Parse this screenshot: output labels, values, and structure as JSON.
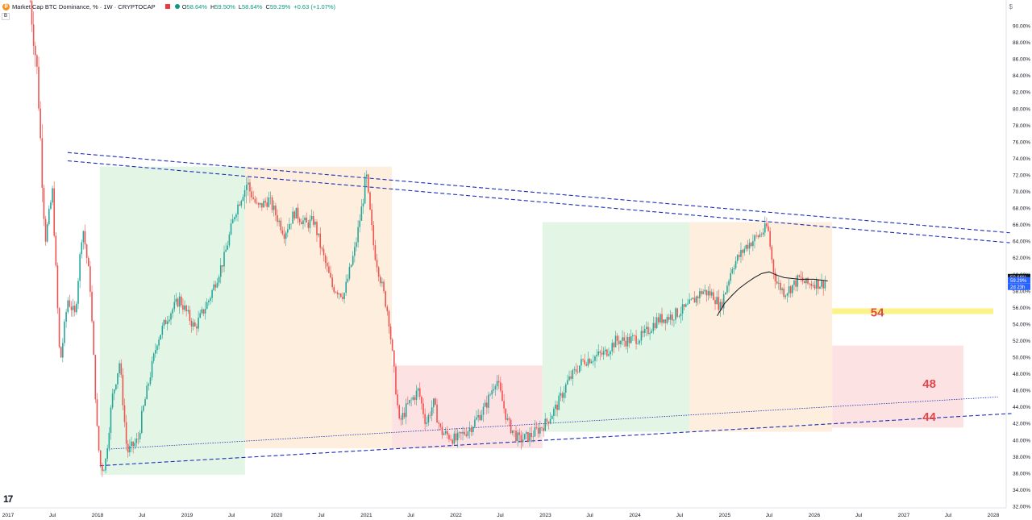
{
  "header": {
    "title": "Market Cap BTC Dominance, % · 1W · CRYPTOCAP",
    "btc_symbol": "₿",
    "open_label": "O",
    "open": "58.64%",
    "high_label": "H",
    "high": "59.50%",
    "low_label": "L",
    "low": "58.64%",
    "close_label": "C",
    "close": "59.29%",
    "change": "+0.63 (+1.07%)",
    "sub": "B"
  },
  "colors": {
    "up": "#26a69a",
    "down": "#ef5350",
    "green_zone": "#e3f6e5",
    "orange_zone": "#fdeedd",
    "red_zone": "#fce2e3",
    "yellow_zone": "#fbf38a",
    "trend": "#1a2fb8",
    "number": "#e0474c"
  },
  "price_tags": [
    {
      "text": "59.66%",
      "bg": "#131722",
      "fg": "#ffffff"
    },
    {
      "text": "59.29%",
      "bg": "#2962ff",
      "fg": "#ffffff"
    },
    {
      "text": "2d 23h",
      "bg": "#2962ff",
      "fg": "#ffffff"
    }
  ],
  "chart_data": {
    "type": "candlestick",
    "title": "Market Cap BTC Dominance, % · 1W · CRYPTOCAP",
    "ylim": [
      31.5,
      93.5
    ],
    "y_ticks": [
      "32.00%",
      "34.00%",
      "36.00%",
      "38.00%",
      "40.00%",
      "42.00%",
      "44.00%",
      "46.00%",
      "48.00%",
      "50.00%",
      "52.00%",
      "54.00%",
      "56.00%",
      "58.00%",
      "60.00%",
      "62.00%",
      "64.00%",
      "66.00%",
      "68.00%",
      "70.00%",
      "72.00%",
      "74.00%",
      "76.00%",
      "78.00%",
      "80.00%",
      "82.00%",
      "84.00%",
      "86.00%",
      "88.00%",
      "90.00%"
    ],
    "x_ticks": [
      "2017",
      "Jul",
      "2018",
      "Jul",
      "2019",
      "Jul",
      "2020",
      "Jul",
      "2021",
      "Jul",
      "2022",
      "Jul",
      "2023",
      "Jul",
      "2024",
      "Jul",
      "2025",
      "Jul",
      "2026",
      "Jul",
      "2027",
      "Jul",
      "2028"
    ],
    "price_path": [
      [
        "2017-04-01",
        93.0
      ],
      [
        "2017-05-01",
        84.0
      ],
      [
        "2017-06-01",
        64.0
      ],
      [
        "2017-07-01",
        70.0
      ],
      [
        "2017-08-01",
        49.0
      ],
      [
        "2017-09-01",
        57.0
      ],
      [
        "2017-10-01",
        55.0
      ],
      [
        "2017-11-01",
        66.0
      ],
      [
        "2017-12-01",
        59.0
      ],
      [
        "2018-01-01",
        40.0
      ],
      [
        "2018-01-15",
        36.5
      ],
      [
        "2018-02-01",
        37.0
      ],
      [
        "2018-03-01",
        45.0
      ],
      [
        "2018-04-01",
        49.5
      ],
      [
        "2018-05-01",
        38.5
      ],
      [
        "2018-06-15",
        40.0
      ],
      [
        "2018-07-01",
        43.0
      ],
      [
        "2018-09-01",
        52.0
      ],
      [
        "2018-10-15",
        55.0
      ],
      [
        "2018-12-01",
        57.0
      ],
      [
        "2019-02-01",
        53.5
      ],
      [
        "2019-04-01",
        57.0
      ],
      [
        "2019-06-01",
        62.0
      ],
      [
        "2019-07-15",
        67.5
      ],
      [
        "2019-09-01",
        71.0
      ],
      [
        "2019-10-15",
        68.0
      ],
      [
        "2019-12-01",
        69.0
      ],
      [
        "2020-02-01",
        65.0
      ],
      [
        "2020-03-15",
        67.5
      ],
      [
        "2020-05-01",
        66.0
      ],
      [
        "2020-06-01",
        66.5
      ],
      [
        "2020-07-01",
        63.0
      ],
      [
        "2020-08-15",
        58.5
      ],
      [
        "2020-10-01",
        57.5
      ],
      [
        "2020-11-15",
        63.0
      ],
      [
        "2021-01-01",
        71.5
      ],
      [
        "2021-02-01",
        63.0
      ],
      [
        "2021-04-01",
        55.0
      ],
      [
        "2021-05-15",
        42.0
      ],
      [
        "2021-06-15",
        44.0
      ],
      [
        "2021-08-01",
        46.0
      ],
      [
        "2021-09-01",
        42.0
      ],
      [
        "2021-10-01",
        44.5
      ],
      [
        "2021-11-01",
        41.0
      ],
      [
        "2022-01-01",
        40.0
      ],
      [
        "2022-03-01",
        41.5
      ],
      [
        "2022-05-01",
        44.0
      ],
      [
        "2022-06-15",
        47.5
      ],
      [
        "2022-08-01",
        42.0
      ],
      [
        "2022-09-15",
        40.0
      ],
      [
        "2022-11-01",
        40.5
      ],
      [
        "2023-01-01",
        42.0
      ],
      [
        "2023-02-15",
        44.0
      ],
      [
        "2023-04-01",
        47.0
      ],
      [
        "2023-06-01",
        49.5
      ],
      [
        "2023-07-15",
        50.0
      ],
      [
        "2023-09-01",
        50.5
      ],
      [
        "2023-10-15",
        52.0
      ],
      [
        "2023-12-01",
        52.0
      ],
      [
        "2024-02-01",
        52.5
      ],
      [
        "2024-04-01",
        54.5
      ],
      [
        "2024-06-01",
        55.0
      ],
      [
        "2024-08-01",
        56.0
      ],
      [
        "2024-10-01",
        58.0
      ],
      [
        "2024-11-15",
        57.5
      ],
      [
        "2024-12-15",
        56.0
      ],
      [
        "2025-02-01",
        61.0
      ],
      [
        "2025-04-01",
        63.5
      ],
      [
        "2025-06-01",
        65.0
      ],
      [
        "2025-06-25",
        65.8
      ],
      [
        "2025-07-15",
        61.0
      ],
      [
        "2025-08-01",
        59.0
      ],
      [
        "2025-09-01",
        57.8
      ],
      [
        "2025-10-01",
        58.5
      ],
      [
        "2025-11-01",
        59.5
      ],
      [
        "2025-12-01",
        58.8
      ],
      [
        "2026-01-01",
        59.0
      ],
      [
        "2026-02-01",
        58.8
      ],
      [
        "2026-02-20",
        59.3
      ]
    ],
    "moving_average": [
      [
        "2024-12-01",
        55.0
      ],
      [
        "2025-01-01",
        56.5
      ],
      [
        "2025-02-01",
        57.5
      ],
      [
        "2025-03-01",
        58.3
      ],
      [
        "2025-04-01",
        59.0
      ],
      [
        "2025-05-01",
        59.6
      ],
      [
        "2025-06-01",
        60.1
      ],
      [
        "2025-07-01",
        60.3
      ],
      [
        "2025-08-01",
        59.9
      ],
      [
        "2025-09-01",
        59.6
      ],
      [
        "2025-11-01",
        59.4
      ],
      [
        "2026-01-01",
        59.4
      ],
      [
        "2026-02-25",
        59.2
      ]
    ],
    "zones": [
      {
        "color": "green",
        "x": [
          "2018-01-10",
          "2019-08-25"
        ],
        "y": [
          35.8,
          73.0
        ]
      },
      {
        "color": "orange",
        "x": [
          "2019-08-25",
          "2021-04-15"
        ],
        "y": [
          39.0,
          73.0
        ]
      },
      {
        "color": "red",
        "x": [
          "2021-04-15",
          "2022-12-20"
        ],
        "y": [
          39.0,
          49.0
        ]
      },
      {
        "color": "green",
        "x": [
          "2022-12-20",
          "2024-08-10"
        ],
        "y": [
          41.0,
          66.3
        ]
      },
      {
        "color": "orange",
        "x": [
          "2024-08-10",
          "2026-03-15"
        ],
        "y": [
          41.0,
          66.3
        ]
      },
      {
        "color": "yellow",
        "x": [
          "2026-03-15",
          "2028-01-01"
        ],
        "y": [
          55.2,
          55.9
        ]
      },
      {
        "color": "red",
        "x": [
          "2026-03-15",
          "2027-09-01"
        ],
        "y": [
          41.5,
          51.4
        ]
      }
    ],
    "trendlines": [
      {
        "style": "dashed",
        "from": [
          "2017-09-01",
          74.7
        ],
        "to": [
          "2028-03-15",
          65.0
        ]
      },
      {
        "style": "dashed",
        "from": [
          "2017-09-01",
          73.7
        ],
        "to": [
          "2028-03-15",
          63.8
        ]
      },
      {
        "style": "dashed",
        "from": [
          "2018-01-10",
          36.9
        ],
        "to": [
          "2028-03-15",
          43.2
        ]
      },
      {
        "style": "dotted",
        "from": [
          "2018-02-15",
          38.9
        ],
        "to": [
          "2028-01-20",
          45.2
        ]
      }
    ],
    "level_labels": [
      "54",
      "48",
      "44"
    ]
  }
}
